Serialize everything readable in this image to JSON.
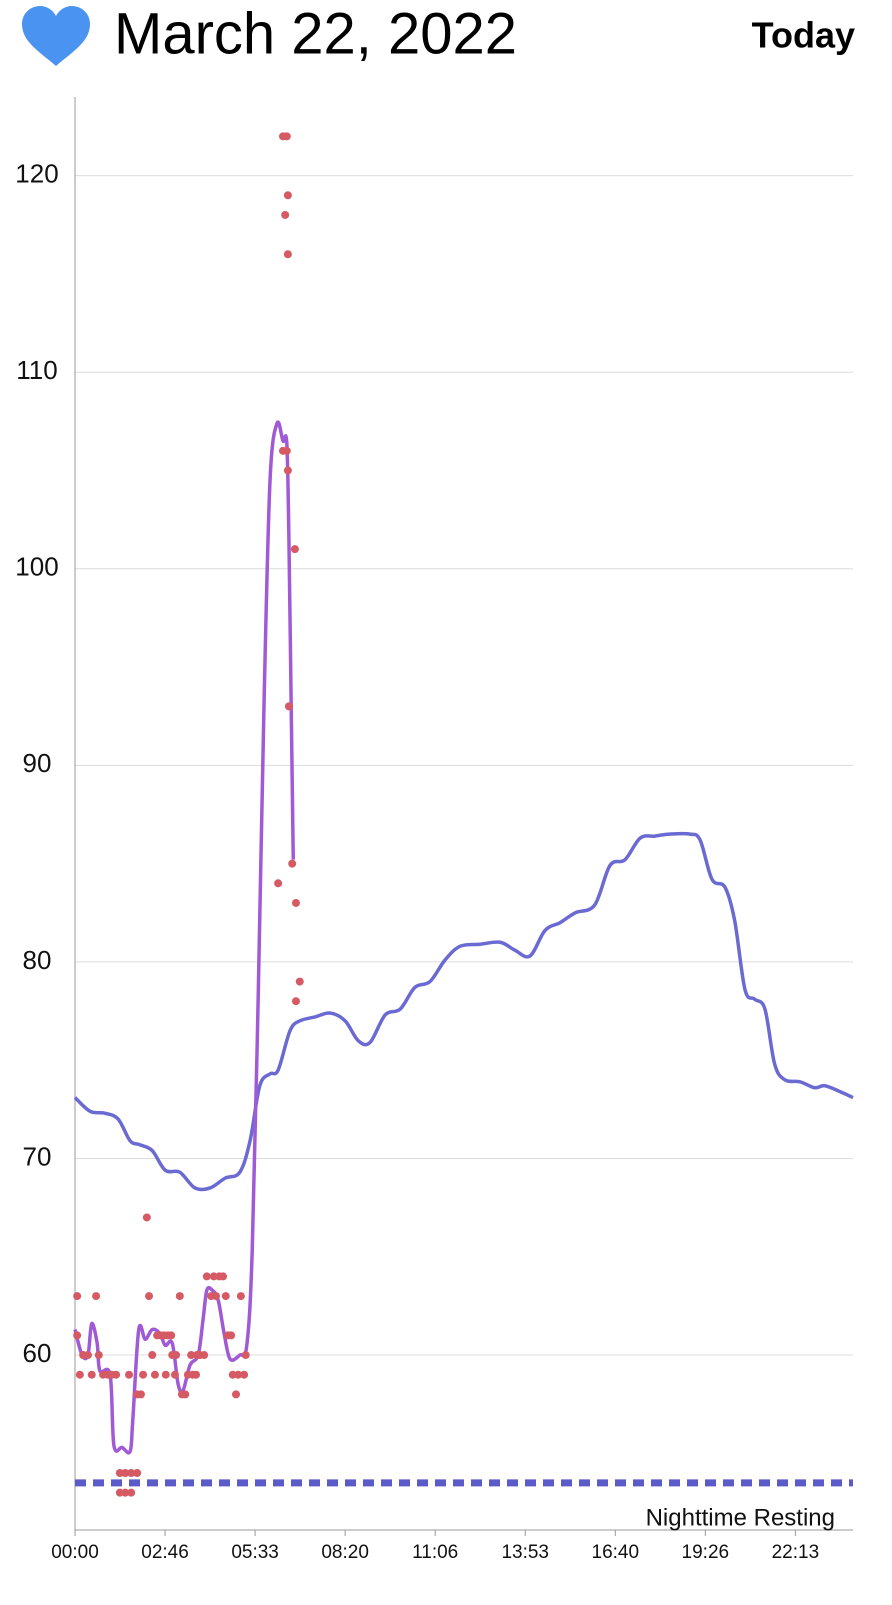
{
  "header": {
    "title": "March 22, 2022",
    "button": "Today"
  },
  "chart_data": {
    "type": "line",
    "xlim": [
      0,
      1440
    ],
    "ylim": [
      51.1,
      124
    ],
    "yticks": [
      60,
      70,
      80,
      90,
      100,
      110,
      120
    ],
    "xticks": [
      {
        "value": 0,
        "label": "00:00"
      },
      {
        "value": 166.67,
        "label": "02:46"
      },
      {
        "value": 333.33,
        "label": "05:33"
      },
      {
        "value": 500,
        "label": "08:20"
      },
      {
        "value": 666.67,
        "label": "11:06"
      },
      {
        "value": 833.33,
        "label": "13:53"
      },
      {
        "value": 1000,
        "label": "16:40"
      },
      {
        "value": 1166.67,
        "label": "19:26"
      },
      {
        "value": 1333.33,
        "label": "22:13"
      }
    ],
    "grid": true,
    "series": [
      {
        "type": "scatter",
        "color": "#d65a64",
        "x": [
          4,
          4,
          9,
          15,
          24,
          31,
          39,
          44,
          52,
          61,
          68,
          76,
          83,
          83,
          93,
          93,
          104,
          104,
          115,
          100,
          115,
          122,
          126,
          133,
          137,
          143,
          148,
          152,
          159,
          165,
          168,
          172,
          178,
          180,
          185,
          187,
          194,
          198,
          204,
          209,
          215,
          218,
          224,
          226,
          231,
          239,
          244,
          252,
          257,
          261,
          267,
          274,
          279,
          283,
          289,
          292,
          298,
          302,
          307,
          313,
          316,
          376,
          385,
          389,
          392,
          385,
          392,
          394,
          394,
          394,
          396,
          402,
          407,
          409,
          409,
          416
        ],
        "values": [
          63,
          61,
          59,
          60,
          60,
          59,
          63,
          60,
          59,
          59,
          59,
          59,
          54,
          53,
          54,
          53,
          53,
          54,
          54,
          59,
          58,
          58,
          59,
          67,
          63,
          60,
          59,
          61,
          61,
          61,
          59,
          61,
          61,
          60,
          59,
          60,
          63,
          58,
          58,
          59,
          60,
          59,
          59,
          60,
          60,
          60,
          64,
          63,
          64,
          63,
          64,
          64,
          63,
          61,
          61,
          59,
          58,
          59,
          63,
          59,
          60,
          84,
          122,
          118,
          122,
          106,
          106,
          119,
          116,
          105,
          93,
          85,
          101,
          83,
          78,
          79
        ]
      },
      {
        "type": "line",
        "color": "#a05ad6",
        "x": [
          0,
          13,
          24,
          31,
          41,
          46,
          65,
          72,
          87,
          102,
          107,
          118,
          130,
          143,
          157,
          167,
          180,
          191,
          200,
          213,
          228,
          237,
          244,
          254,
          265,
          276,
          287,
          305,
          318,
          328,
          339,
          350,
          361,
          374,
          385,
          392,
          396,
          400,
          404
        ],
        "values": [
          61.3,
          60,
          60,
          61.6,
          60.6,
          59.2,
          59,
          55.4,
          55.3,
          55.1,
          56.7,
          61.3,
          60.8,
          61.3,
          61.1,
          60.5,
          60.6,
          58.5,
          58.2,
          59.5,
          60,
          61.8,
          63.3,
          63.3,
          62.8,
          61.1,
          59.8,
          60,
          60.5,
          65.3,
          78.1,
          93.3,
          104.5,
          107.4,
          106.5,
          106.4,
          101.4,
          93.3,
          85.2
        ]
      },
      {
        "type": "line",
        "color": "#6a6ad2",
        "x": [
          0,
          28,
          56,
          80,
          102,
          120,
          143,
          167,
          194,
          222,
          250,
          278,
          305,
          324,
          342,
          361,
          376,
          398,
          416,
          444,
          472,
          500,
          524,
          546,
          574,
          602,
          629,
          657,
          685,
          713,
          750,
          787,
          814,
          842,
          870,
          898,
          926,
          962,
          990,
          1018,
          1046,
          1073,
          1101,
          1138,
          1157,
          1179,
          1203,
          1221,
          1240,
          1258,
          1277,
          1295,
          1314,
          1342,
          1369,
          1388,
          1416,
          1440
        ],
        "values": [
          73.1,
          72.4,
          72.3,
          72.0,
          70.9,
          70.7,
          70.4,
          69.4,
          69.3,
          68.5,
          68.5,
          69.0,
          69.3,
          70.9,
          73.7,
          74.3,
          74.5,
          76.5,
          77.0,
          77.2,
          77.4,
          77.0,
          76.0,
          75.9,
          77.3,
          77.6,
          78.7,
          79.0,
          80.1,
          80.8,
          80.9,
          81.0,
          80.6,
          80.3,
          81.6,
          82.0,
          82.5,
          82.9,
          84.9,
          85.2,
          86.3,
          86.4,
          86.5,
          86.5,
          86.2,
          84.2,
          83.8,
          82.1,
          78.6,
          78.1,
          77.6,
          74.8,
          74.0,
          73.9,
          73.6,
          73.7,
          73.4,
          73.1
        ]
      }
    ],
    "reference_line": {
      "value": 53.5,
      "label": "Nighttime Resting",
      "color": "#5a5ac8"
    }
  }
}
